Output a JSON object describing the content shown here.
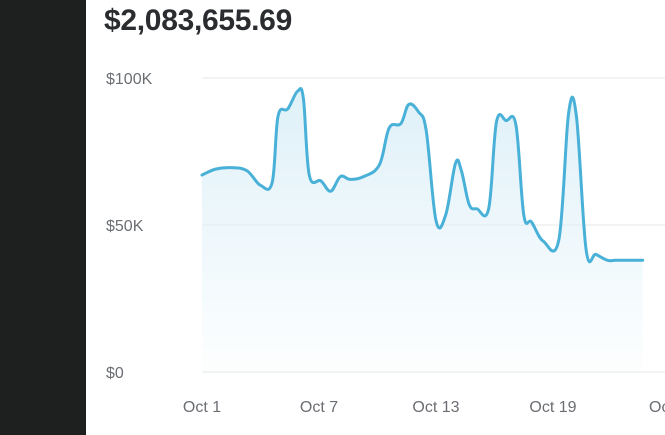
{
  "sidebar": {},
  "summary": {
    "total_value": "$2,083,655.69"
  },
  "chart_data": {
    "type": "area",
    "title": "",
    "xlabel": "",
    "ylabel": "",
    "y_ticks": [
      "$0",
      "$50K",
      "$100K"
    ],
    "x_ticks": [
      "Oct 1",
      "Oct 7",
      "Oct 13",
      "Oct 19",
      "Oct"
    ],
    "ylim": [
      0,
      100000
    ],
    "grid": true,
    "line_color": "#49b1d8",
    "fill_color": "#d9eef7",
    "x": [
      "Oct 1",
      "Oct 1.7",
      "Oct 2.5",
      "Oct 3.3",
      "Oct 4.0",
      "Oct 4.6",
      "Oct 4.9",
      "Oct 5.4",
      "Oct 5.9",
      "Oct 6.2",
      "Oct 6.5",
      "Oct 7.1",
      "Oct 7.6",
      "Oct 8.1",
      "Oct 8.6",
      "Oct 9.3",
      "Oct 10.1",
      "Oct 10.6",
      "Oct 11.2",
      "Oct 11.6",
      "Oct 12.1",
      "Oct 12.5",
      "Oct 13.0",
      "Oct 13.5",
      "Oct 14.0",
      "Oct 14.3",
      "Oct 14.7",
      "Oct 15.1",
      "Oct 15.7",
      "Oct 16.1",
      "Oct 16.6",
      "Oct 17.1",
      "Oct 17.5",
      "Oct 17.9",
      "Oct 18.5",
      "Oct 19.3",
      "Oct 19.8",
      "Oct 20.2",
      "Oct 20.7",
      "Oct 21.2",
      "Oct 21.8",
      "Oct 22.2",
      "Oct 22.6",
      "Oct 23.0",
      "Oct 23.3",
      "Oct 23.6"
    ],
    "series": [
      {
        "values": [
          67000,
          69000,
          69500,
          68500,
          63500,
          64500,
          87000,
          89500,
          95500,
          93000,
          67000,
          65000,
          61500,
          66500,
          65500,
          66500,
          70500,
          83000,
          84500,
          91000,
          88500,
          82000,
          51500,
          53500,
          71000,
          68500,
          57000,
          55500,
          55500,
          85000,
          85500,
          84000,
          53500,
          51000,
          44500,
          45000,
          88000,
          87000,
          41500,
          40000,
          38000,
          38000,
          38000,
          38000,
          38000,
          38000
        ]
      }
    ]
  }
}
